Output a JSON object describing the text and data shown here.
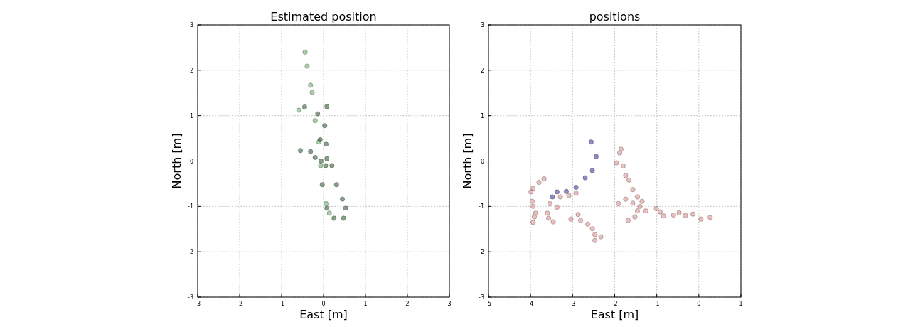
{
  "chart_data": [
    {
      "type": "scatter",
      "title": "Estimated position",
      "xlabel": "East [m]",
      "ylabel": "North [m]",
      "xlim": [
        -3,
        3
      ],
      "ylim": [
        -3,
        3
      ],
      "xticks": [
        -3,
        -2,
        -1,
        0,
        1,
        2,
        3
      ],
      "yticks": [
        -3,
        -2,
        -1,
        0,
        1,
        2,
        3
      ],
      "grid": true,
      "marker": "circle",
      "series": [
        {
          "color": "#4f9f4f",
          "x": [
            -0.44,
            -0.39,
            -0.31,
            -0.27,
            -0.59,
            -0.2,
            -0.11,
            -0.07,
            0.06,
            0.14
          ],
          "values": [
            2.4,
            2.09,
            1.67,
            1.51,
            1.12,
            0.89,
            0.42,
            -0.1,
            -0.94,
            -1.15
          ]
        },
        {
          "color": "#0d400d",
          "x": [
            -0.45,
            -0.14,
            0.03,
            0.06,
            0.08,
            0.2,
            0.31,
            0.45,
            0.53,
            0.48,
            0.25,
            0.08,
            -0.03,
            -0.06,
            -0.55,
            -0.31,
            -0.2,
            -0.08,
            0.05,
            0.08
          ],
          "values": [
            1.19,
            1.04,
            0.78,
            0.37,
            0.05,
            -0.1,
            -0.52,
            -0.84,
            -1.04,
            -1.26,
            -1.26,
            -1.04,
            -0.52,
            0.0,
            0.23,
            0.21,
            0.08,
            0.47,
            -0.1,
            1.2
          ]
        }
      ]
    },
    {
      "type": "scatter",
      "title": "positions",
      "xlabel": "East [m]",
      "ylabel": "North [m]",
      "xlim": [
        -5,
        1
      ],
      "ylim": [
        -3,
        3
      ],
      "xticks": [
        -5,
        -4,
        -3,
        -2,
        -1,
        0,
        1
      ],
      "yticks": [
        -3,
        -2,
        -1,
        0,
        1,
        2,
        3
      ],
      "grid": true,
      "marker": "circle",
      "series": [
        {
          "color": "#1a1a8c",
          "x": [
            -2.56,
            -2.44,
            -2.53,
            -2.7,
            -2.92,
            -3.15,
            -3.37,
            -3.48
          ],
          "values": [
            0.42,
            0.1,
            -0.21,
            -0.37,
            -0.58,
            -0.67,
            -0.68,
            -0.79
          ]
        },
        {
          "color": "#d98080",
          "x": [
            -3.68,
            -3.8,
            -3.94,
            -3.99,
            -3.96,
            -3.94,
            -3.88,
            -3.91,
            -3.94,
            -3.54,
            -3.37,
            -3.6,
            -3.57,
            -3.46,
            -3.29,
            -3.09,
            -2.92,
            -3.04,
            -2.87,
            -2.81,
            -2.64,
            -2.53,
            -2.47,
            -2.33,
            -2.47,
            -1.85,
            -1.88,
            -1.96,
            -1.8,
            -1.74,
            -1.66,
            -1.57,
            -1.46,
            -1.35,
            -1.4,
            -1.46,
            -1.52,
            -1.68,
            -1.91,
            -1.74,
            -1.57,
            -1.26,
            -1.01,
            -0.92,
            -0.84,
            -0.6,
            -0.47,
            -0.32,
            -0.14,
            0.05,
            0.27
          ],
          "values": [
            -0.39,
            -0.47,
            -0.6,
            -0.68,
            -0.89,
            -1.0,
            -1.15,
            -1.23,
            -1.35,
            -0.94,
            -1.02,
            -1.15,
            -1.26,
            -1.34,
            -0.79,
            -0.76,
            -0.71,
            -1.28,
            -1.18,
            -1.31,
            -1.39,
            -1.49,
            -1.62,
            -1.67,
            -1.75,
            0.26,
            0.18,
            -0.04,
            -0.11,
            -0.32,
            -0.42,
            -0.63,
            -0.79,
            -0.89,
            -1.0,
            -1.1,
            -1.23,
            -1.31,
            -0.94,
            -0.84,
            -0.93,
            -1.1,
            -1.05,
            -1.12,
            -1.21,
            -1.19,
            -1.14,
            -1.2,
            -1.17,
            -1.28,
            -1.24
          ]
        }
      ]
    }
  ]
}
